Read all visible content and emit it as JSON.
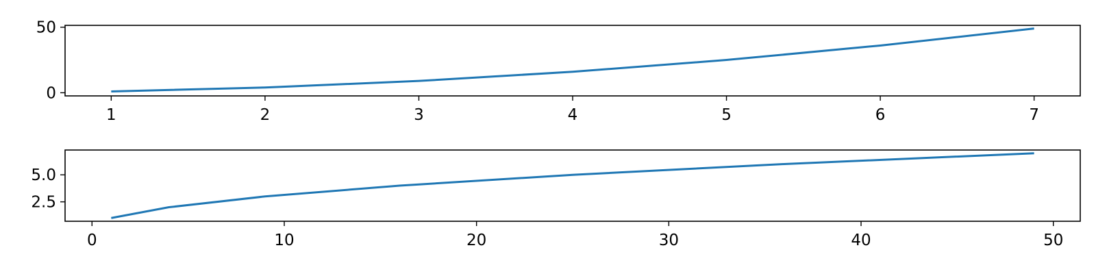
{
  "chart_data": [
    {
      "type": "line",
      "title": "",
      "xlabel": "",
      "ylabel": "",
      "xlim": [
        0.7,
        7.3
      ],
      "ylim": [
        -2.4,
        51.4
      ],
      "xticks": [
        1,
        2,
        3,
        4,
        5,
        6,
        7
      ],
      "xtick_labels": [
        "1",
        "2",
        "3",
        "4",
        "5",
        "6",
        "7"
      ],
      "yticks": [
        0,
        50
      ],
      "ytick_labels": [
        "0",
        "50"
      ],
      "grid": false,
      "color": "#1f77b4",
      "series": [
        {
          "x": [
            1,
            2,
            3,
            4,
            5,
            6,
            7
          ],
          "y": [
            1,
            4,
            9,
            16,
            25,
            36,
            49
          ]
        }
      ]
    },
    {
      "type": "line",
      "title": "",
      "xlabel": "",
      "ylabel": "",
      "xlim": [
        -1.4,
        51.4
      ],
      "ylim": [
        0.7,
        7.3
      ],
      "xticks": [
        0,
        10,
        20,
        30,
        40,
        50
      ],
      "xtick_labels": [
        "0",
        "10",
        "20",
        "30",
        "40",
        "50"
      ],
      "yticks": [
        2.5,
        5.0
      ],
      "ytick_labels": [
        "2.5",
        "5.0"
      ],
      "grid": false,
      "color": "#1f77b4",
      "series": [
        {
          "x": [
            1,
            4,
            9,
            16,
            25,
            36,
            49
          ],
          "y": [
            1,
            2,
            3,
            4,
            5,
            6,
            7
          ]
        }
      ]
    }
  ]
}
